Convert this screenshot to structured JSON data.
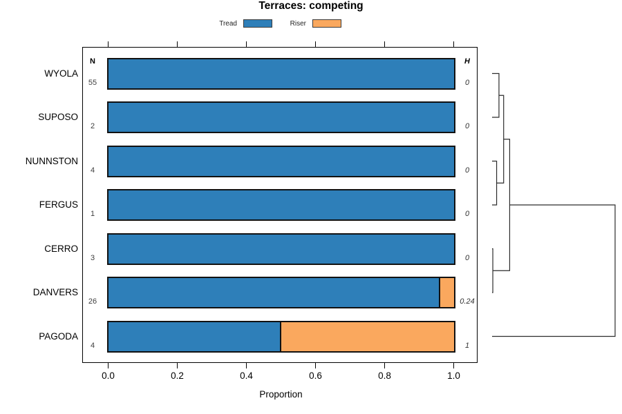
{
  "title": "Terraces: competing",
  "legend": {
    "items": [
      {
        "label": "Tread",
        "color": "#2E7FB9"
      },
      {
        "label": "Riser",
        "color": "#FAA85E"
      }
    ]
  },
  "columns": {
    "n_header": "N",
    "h_header": "H"
  },
  "x_axis": {
    "label": "Proportion",
    "ticks": [
      {
        "label": "0.0",
        "value": 0.0
      },
      {
        "label": "0.2",
        "value": 0.2
      },
      {
        "label": "0.4",
        "value": 0.4
      },
      {
        "label": "0.6",
        "value": 0.6
      },
      {
        "label": "0.8",
        "value": 0.8
      },
      {
        "label": "1.0",
        "value": 1.0
      }
    ]
  },
  "chart_data": {
    "type": "bar",
    "orientation": "horizontal_stacked",
    "title": "Terraces: competing",
    "xlabel": "Proportion",
    "xlim": [
      0,
      1
    ],
    "grid": false,
    "legend_position": "top",
    "categories": [
      "WYOLA",
      "SUPOSO",
      "NUNNSTON",
      "FERGUS",
      "CERRO",
      "DANVERS",
      "PAGODA"
    ],
    "sample_sizes_N": [
      55,
      2,
      4,
      1,
      3,
      26,
      4
    ],
    "diversity_H": [
      "0",
      "0",
      "0",
      "0",
      "0",
      "0.24",
      "1"
    ],
    "series": [
      {
        "name": "Tread",
        "color": "#2E7FB9",
        "values": [
          1.0,
          1.0,
          1.0,
          1.0,
          1.0,
          0.96,
          0.5
        ]
      },
      {
        "name": "Riser",
        "color": "#FAA85E",
        "values": [
          0.0,
          0.0,
          0.0,
          0.0,
          0.0,
          0.04,
          0.5
        ]
      }
    ],
    "dendrogram": {
      "side": "right",
      "line_color": "#2b2b2b",
      "merges": [
        {
          "a": "L0",
          "b": "L1",
          "height": 0.056
        },
        {
          "a": "L2",
          "b": "L3",
          "height": 0.037
        },
        {
          "a": "L4",
          "b": "L5",
          "height": 0.006
        },
        {
          "a": "M0",
          "b": "M1",
          "height": 0.094
        },
        {
          "a": "M3",
          "b": "M2",
          "height": 0.143
        },
        {
          "a": "M4",
          "b": "L6",
          "height": 1.0
        }
      ]
    }
  }
}
